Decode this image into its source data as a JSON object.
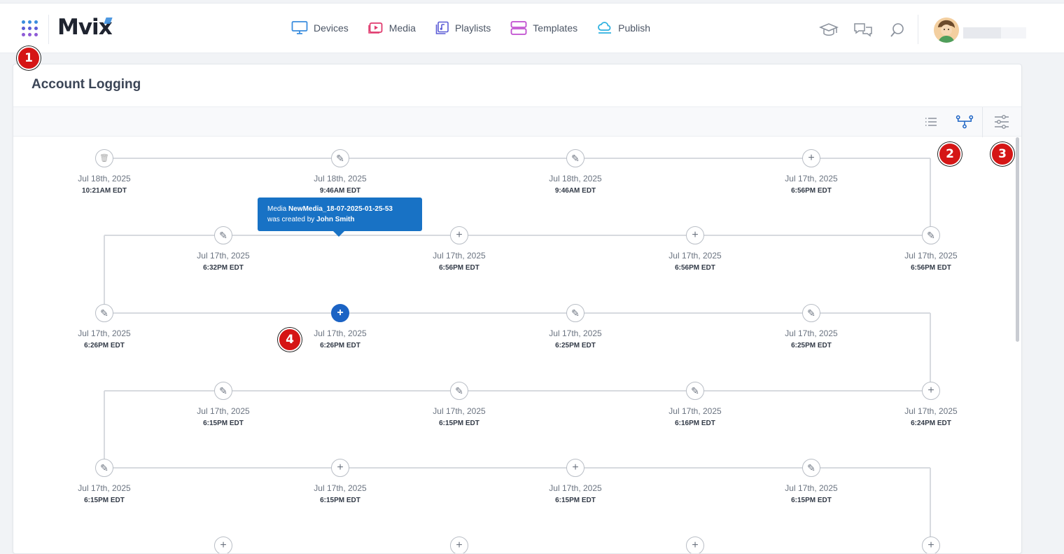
{
  "app": {
    "logo_main": "Mvi",
    "logo_x": "x"
  },
  "nav": {
    "items": [
      {
        "label": "Devices",
        "icon": "monitor-icon",
        "color": "#3a8dde"
      },
      {
        "label": "Media",
        "icon": "media-play-icon",
        "color": "#e03b6e"
      },
      {
        "label": "Playlists",
        "icon": "playlist-icon",
        "color": "#5b5cd6"
      },
      {
        "label": "Templates",
        "icon": "templates-icon",
        "color": "#c04fd0"
      },
      {
        "label": "Publish",
        "icon": "publish-cloud-icon",
        "color": "#2eb1e0"
      }
    ]
  },
  "header_tools": [
    "graduation-cap-icon",
    "chat-icon",
    "search-icon"
  ],
  "page": {
    "title": "Account Logging"
  },
  "toolbar": {
    "buttons": [
      "list-view-icon",
      "timeline-view-icon",
      "filter-sliders-icon"
    ],
    "active": "timeline-view-icon"
  },
  "timeline": {
    "events": [
      {
        "type": "delete",
        "date": "Jul 18th, 2025",
        "time": "10:21AM EDT"
      },
      {
        "type": "edit",
        "date": "Jul 18th, 2025",
        "time": "9:46AM EDT"
      },
      {
        "type": "edit",
        "date": "Jul 18th, 2025",
        "time": "9:46AM EDT"
      },
      {
        "type": "create",
        "date": "Jul 17th, 2025",
        "time": "6:56PM EDT"
      },
      {
        "type": "edit",
        "date": "Jul 17th, 2025",
        "time": "6:56PM EDT"
      },
      {
        "type": "create",
        "date": "Jul 17th, 2025",
        "time": "6:56PM EDT"
      },
      {
        "type": "create",
        "date": "Jul 17th, 2025",
        "time": "6:56PM EDT"
      },
      {
        "type": "edit",
        "date": "Jul 17th, 2025",
        "time": "6:32PM EDT"
      },
      {
        "type": "edit",
        "date": "Jul 17th, 2025",
        "time": "6:26PM EDT"
      },
      {
        "type": "create",
        "date": "Jul 17th, 2025",
        "time": "6:26PM EDT",
        "active": true
      },
      {
        "type": "edit",
        "date": "Jul 17th, 2025",
        "time": "6:25PM EDT"
      },
      {
        "type": "edit",
        "date": "Jul 17th, 2025",
        "time": "6:25PM EDT"
      },
      {
        "type": "create",
        "date": "Jul 17th, 2025",
        "time": "6:24PM EDT"
      },
      {
        "type": "edit",
        "date": "Jul 17th, 2025",
        "time": "6:16PM EDT"
      },
      {
        "type": "edit",
        "date": "Jul 17th, 2025",
        "time": "6:15PM EDT"
      },
      {
        "type": "edit",
        "date": "Jul 17th, 2025",
        "time": "6:15PM EDT"
      },
      {
        "type": "edit",
        "date": "Jul 17th, 2025",
        "time": "6:15PM EDT"
      },
      {
        "type": "create",
        "date": "Jul 17th, 2025",
        "time": "6:15PM EDT"
      },
      {
        "type": "create",
        "date": "Jul 17th, 2025",
        "time": "6:15PM EDT"
      },
      {
        "type": "edit",
        "date": "Jul 17th, 2025",
        "time": "6:15PM EDT"
      }
    ],
    "more_rows_hint": "create"
  },
  "tooltip": {
    "prefix": "Media ",
    "item_name": "NewMedia_18-07-2025-01-25-53",
    "middle": "was created by ",
    "user": "John Smith"
  },
  "markers": [
    "1",
    "2",
    "3",
    "4"
  ]
}
